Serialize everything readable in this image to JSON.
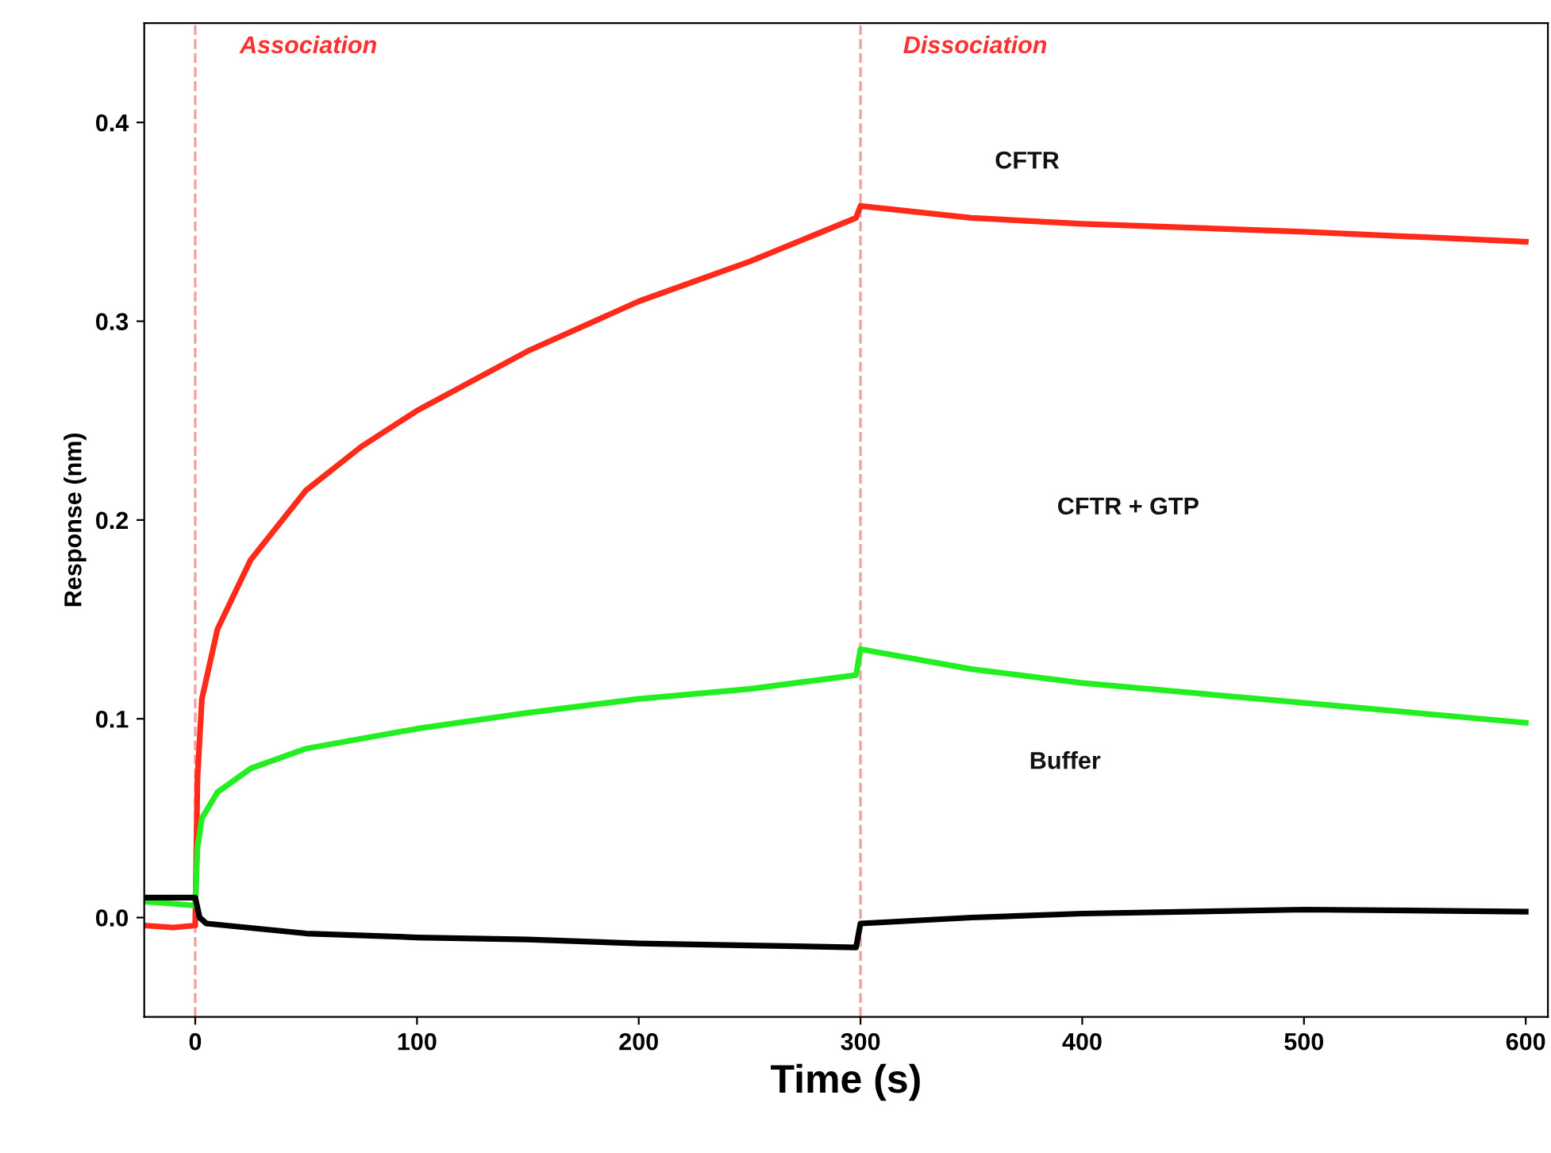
{
  "chart_data": {
    "type": "line",
    "xlabel": "Time (s)",
    "ylabel": "Response (nm)",
    "xlim": [
      -23,
      610
    ],
    "ylim": [
      -0.05,
      0.45
    ],
    "xticks": [
      0,
      100,
      200,
      300,
      400,
      500,
      600
    ],
    "yticks": [
      {
        "value": 0,
        "label": "0.0"
      },
      0.1,
      0.2,
      0.3,
      0.4
    ],
    "grid": false,
    "legend": false,
    "marker": "none",
    "line_style": "solid",
    "series": [
      {
        "color": "#ff2a1a",
        "x": [
          -23,
          -10,
          0,
          1,
          3,
          10,
          25,
          50,
          75,
          100,
          150,
          200,
          250,
          298,
          300,
          350,
          400,
          500,
          600
        ],
        "values": [
          -0.004,
          -0.005,
          -0.004,
          0.07,
          0.11,
          0.145,
          0.18,
          0.215,
          0.237,
          0.255,
          0.285,
          0.31,
          0.33,
          0.352,
          0.358,
          0.352,
          0.349,
          0.345,
          0.34
        ]
      },
      {
        "color": "#22ee22",
        "x": [
          -23,
          -10,
          0,
          1,
          3,
          10,
          25,
          50,
          100,
          150,
          200,
          250,
          298,
          300,
          350,
          400,
          500,
          600
        ],
        "values": [
          0.008,
          0.007,
          0.006,
          0.035,
          0.05,
          0.063,
          0.075,
          0.085,
          0.095,
          0.103,
          0.11,
          0.115,
          0.122,
          0.135,
          0.125,
          0.118,
          0.108,
          0.098
        ]
      },
      {
        "color": "#000000",
        "x": [
          -23,
          -10,
          0,
          2,
          5,
          50,
          100,
          150,
          200,
          250,
          298,
          300,
          350,
          400,
          500,
          600
        ],
        "values": [
          0.01,
          0.01,
          0.01,
          0.0,
          -0.003,
          -0.008,
          -0.01,
          -0.011,
          -0.013,
          -0.014,
          -0.015,
          -0.003,
          0.0,
          0.002,
          0.004,
          0.003
        ]
      }
    ],
    "ref_lines": [
      {
        "axis": "x",
        "value": 0,
        "color": "#f4a0a0",
        "line_style": "dashed"
      },
      {
        "axis": "x",
        "value": 300,
        "color": "#f4a0a0",
        "line_style": "dashed"
      }
    ],
    "annotations": [
      "Association",
      "Dissociation",
      "CFTR",
      "CFTR + GTP",
      "Buffer"
    ]
  }
}
